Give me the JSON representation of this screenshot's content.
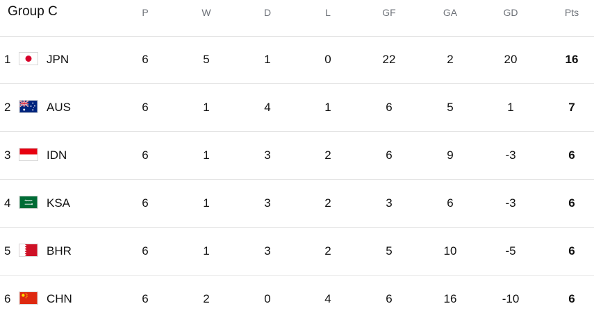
{
  "group": {
    "title": "Group C"
  },
  "columns": [
    "P",
    "W",
    "D",
    "L",
    "GF",
    "GA",
    "GD",
    "Pts"
  ],
  "rows": [
    {
      "pos": "1",
      "team": "JPN",
      "flag": "japan-flag",
      "P": "6",
      "W": "5",
      "D": "1",
      "L": "0",
      "GF": "22",
      "GA": "2",
      "GD": "20",
      "Pts": "16"
    },
    {
      "pos": "2",
      "team": "AUS",
      "flag": "australia-flag",
      "P": "6",
      "W": "1",
      "D": "4",
      "L": "1",
      "GF": "6",
      "GA": "5",
      "GD": "1",
      "Pts": "7"
    },
    {
      "pos": "3",
      "team": "IDN",
      "flag": "indonesia-flag",
      "P": "6",
      "W": "1",
      "D": "3",
      "L": "2",
      "GF": "6",
      "GA": "9",
      "GD": "-3",
      "Pts": "6"
    },
    {
      "pos": "4",
      "team": "KSA",
      "flag": "saudi-arabia-flag",
      "P": "6",
      "W": "1",
      "D": "3",
      "L": "2",
      "GF": "3",
      "GA": "6",
      "GD": "-3",
      "Pts": "6"
    },
    {
      "pos": "5",
      "team": "BHR",
      "flag": "bahrain-flag",
      "P": "6",
      "W": "1",
      "D": "3",
      "L": "2",
      "GF": "5",
      "GA": "10",
      "GD": "-5",
      "Pts": "6"
    },
    {
      "pos": "6",
      "team": "CHN",
      "flag": "china-flag",
      "P": "6",
      "W": "2",
      "D": "0",
      "L": "4",
      "GF": "6",
      "GA": "16",
      "GD": "-10",
      "Pts": "6"
    }
  ],
  "colors": {
    "header_text": "#6e7279",
    "divider": "#e4e4e4",
    "text": "#111111"
  }
}
